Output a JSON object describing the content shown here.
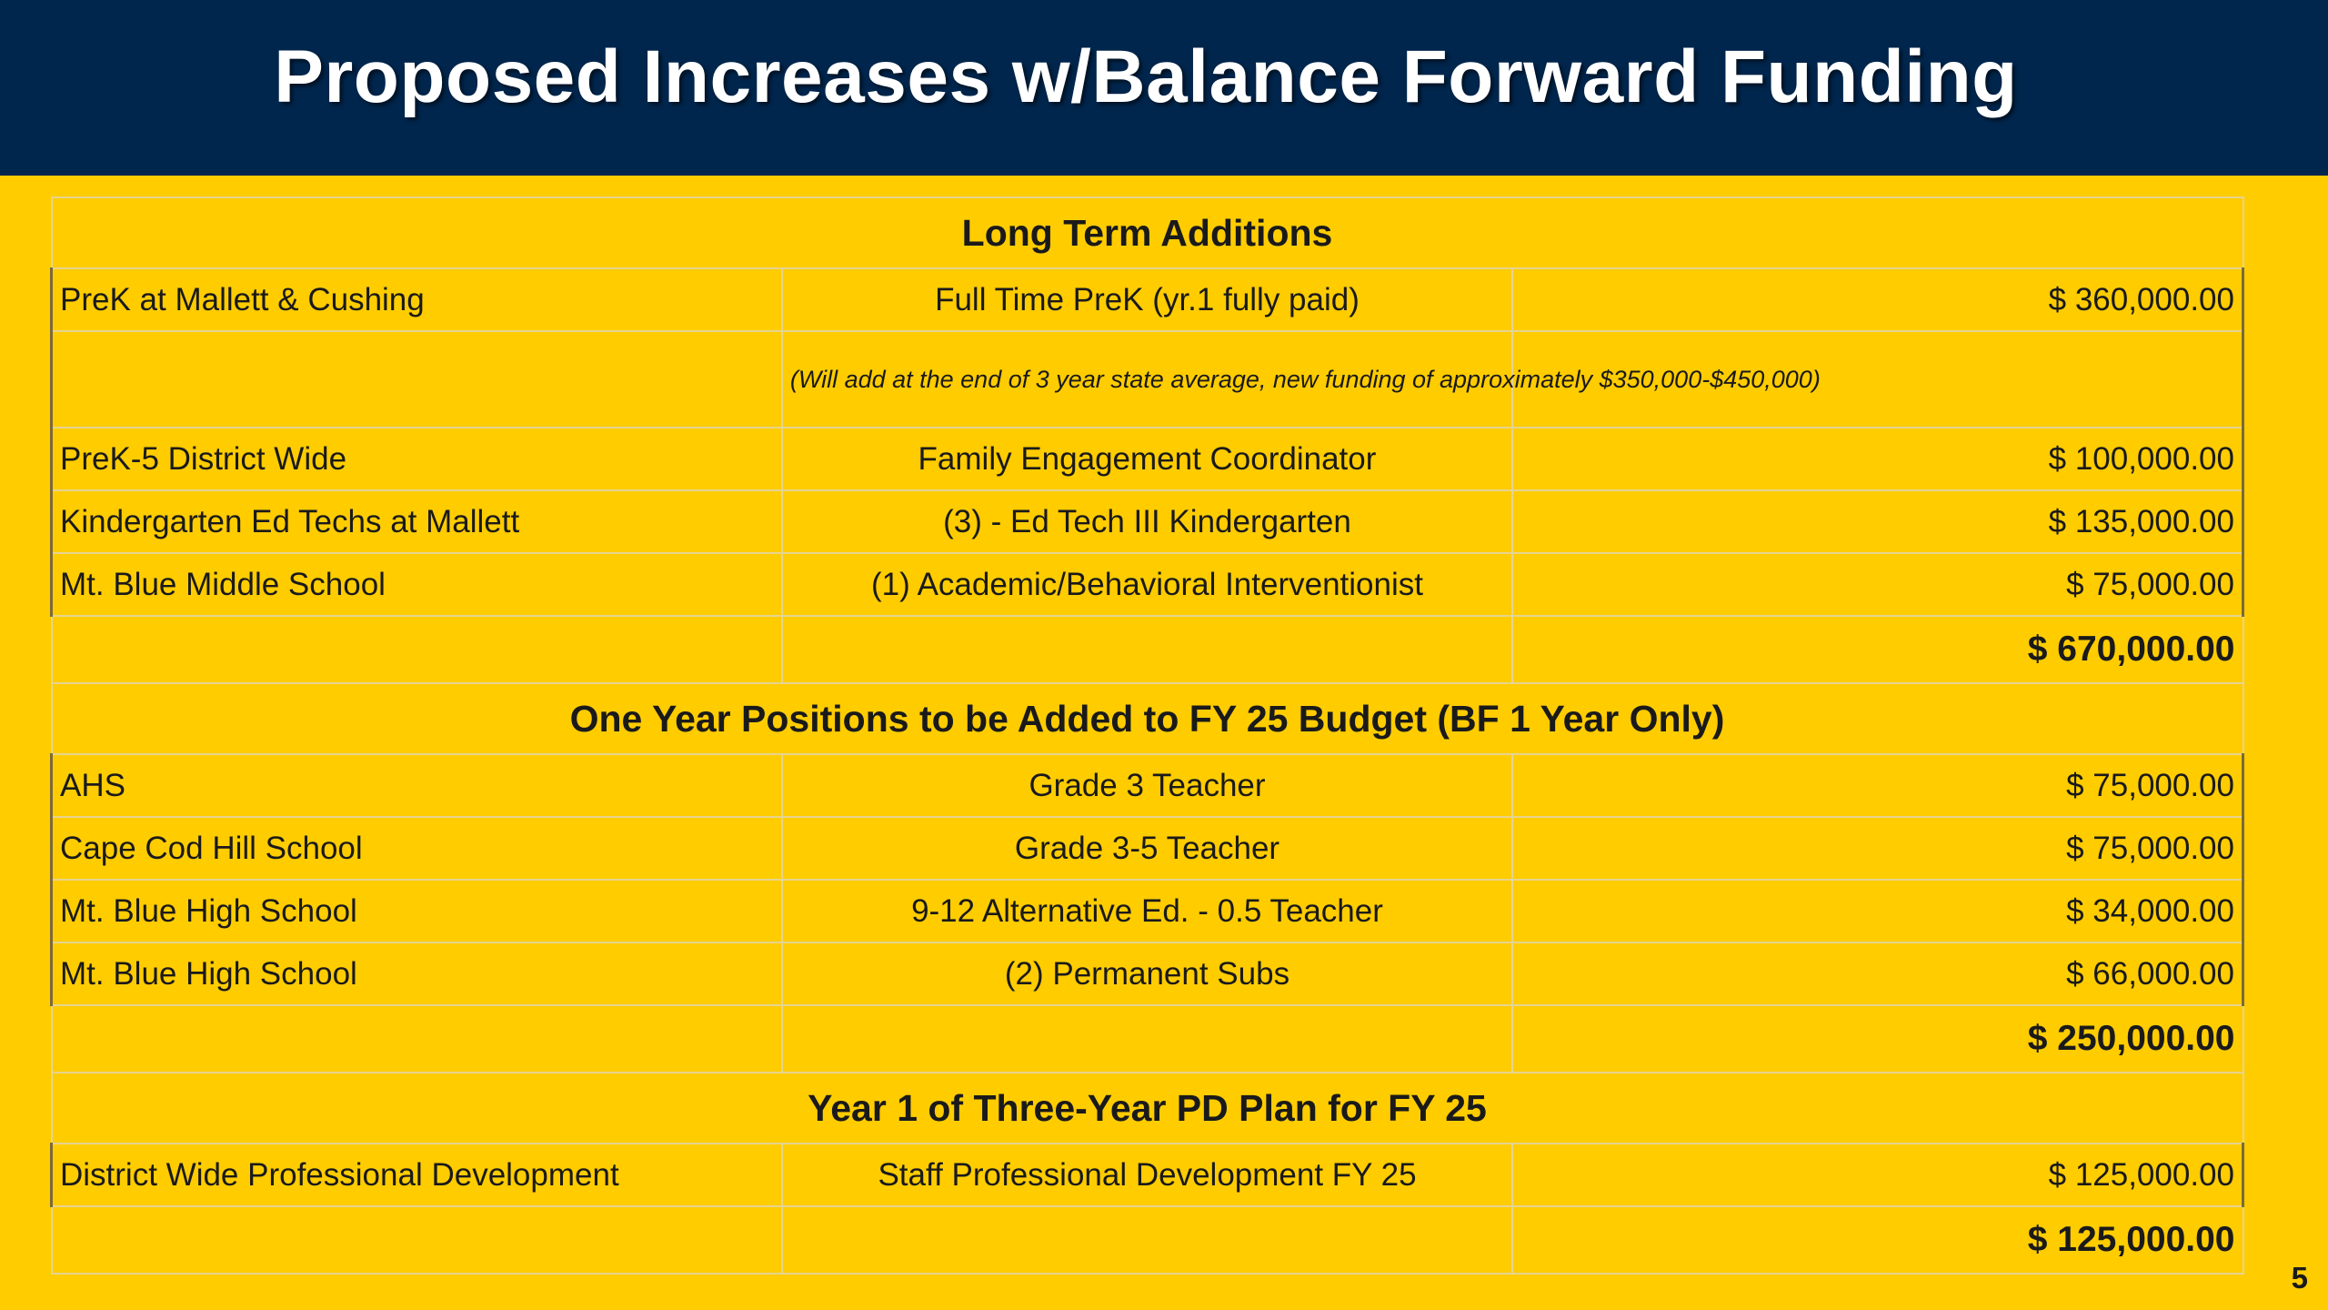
{
  "title": "Proposed Increases w/Balance Forward Funding",
  "page_number": "5",
  "colors": {
    "header_bg": "#00264D",
    "page_bg": "#FFCC00",
    "title_text": "#FFFFFF"
  },
  "sections": [
    {
      "header": "Long Term Additions",
      "rows": [
        {
          "location": "PreK at Mallett & Cushing",
          "position": "Full Time PreK (yr.1 fully paid)",
          "amount": "$ 360,000.00"
        },
        {
          "location": "",
          "position": "(Will add at the end of 3 year state average, new funding of approximately $350,000-$450,000)",
          "amount": ""
        },
        {
          "location": "PreK-5 District Wide",
          "position": "Family Engagement Coordinator",
          "amount": "$ 100,000.00"
        },
        {
          "location": "Kindergarten Ed Techs at Mallett",
          "position": "(3) - Ed Tech III Kindergarten",
          "amount": "$ 135,000.00"
        },
        {
          "location": "Mt. Blue Middle School",
          "position": "(1) Academic/Behavioral Interventionist",
          "amount": "$ 75,000.00"
        }
      ],
      "subtotal": "$ 670,000.00"
    },
    {
      "header": "One Year Positions to be Added to FY 25 Budget (BF 1 Year Only)",
      "rows": [
        {
          "location": "AHS",
          "position": "Grade 3 Teacher",
          "amount": "$ 75,000.00"
        },
        {
          "location": "Cape Cod Hill School",
          "position": "Grade 3-5 Teacher",
          "amount": "$ 75,000.00"
        },
        {
          "location": "Mt. Blue High School",
          "position": "9-12 Alternative Ed. - 0.5 Teacher",
          "amount": "$ 34,000.00"
        },
        {
          "location": "Mt. Blue High School",
          "position": "(2) Permanent Subs",
          "amount": "$ 66,000.00"
        }
      ],
      "subtotal": "$ 250,000.00"
    },
    {
      "header": "Year 1 of Three-Year PD Plan for FY 25",
      "rows": [
        {
          "location": "District Wide Professional Development",
          "position": "Staff Professional Development FY 25",
          "amount": "$ 125,000.00"
        }
      ],
      "subtotal": "$ 125,000.00"
    }
  ]
}
